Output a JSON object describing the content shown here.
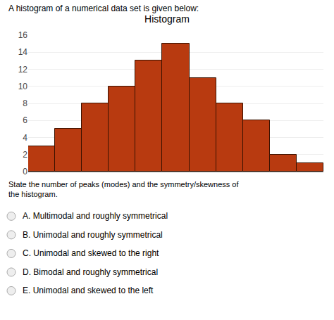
{
  "chart_data": {
    "type": "bar",
    "title": "Histogram",
    "subtitle": "A histogram of a numerical data set is given below:",
    "categories": [
      null,
      null,
      null,
      null,
      null,
      null,
      null,
      null,
      null,
      null,
      null
    ],
    "values": [
      3,
      5,
      8,
      10,
      13,
      15,
      11,
      8,
      6,
      2,
      1
    ],
    "color": "#b83a10",
    "ylim": [
      0,
      16
    ],
    "yticks": [
      0,
      2,
      4,
      6,
      8,
      10,
      12,
      14,
      16
    ],
    "grid": true,
    "tick_labels": "y",
    "annotations": [
      "State the number of peaks (modes) and the symmetry/skewness of the histogram.",
      "A. Multimodal and roughly symmetrical",
      "B. Unimodal and roughly symmetrical",
      "C. Unimodal and skewed to the right",
      "D. Bimodal and roughly symmetrical",
      "E. Unimodal and skewed to the left"
    ]
  }
}
